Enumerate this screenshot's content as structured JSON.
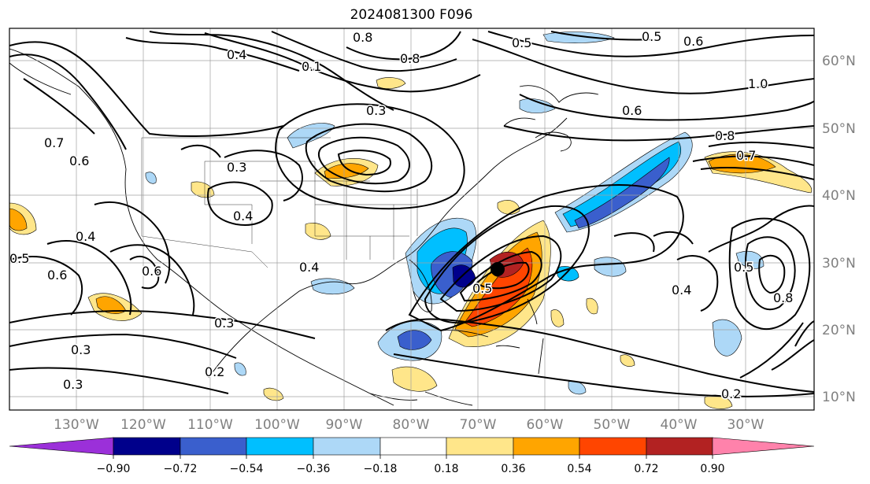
{
  "title": "2024081300 F096",
  "lon_labels": [
    "130°W",
    "120°W",
    "110°W",
    "100°W",
    "90°W",
    "80°W",
    "70°W",
    "60°W",
    "50°W",
    "40°W",
    "30°W"
  ],
  "lat_labels": [
    "60°N",
    "50°N",
    "40°N",
    "30°N",
    "20°N",
    "10°N"
  ],
  "colorbar": {
    "ticks": [
      "−0.90",
      "−0.72",
      "−0.54",
      "−0.36",
      "−0.18",
      "0.18",
      "0.36",
      "0.54",
      "0.72",
      "0.90"
    ],
    "colors": [
      "#9b30d9",
      "#00008b",
      "#3a5fcd",
      "#00bfff",
      "#add8f7",
      "#ffffff",
      "#ffe68a",
      "#ffa500",
      "#ff4500",
      "#b22222",
      "#ff82ab"
    ]
  },
  "contour_labels": [
    "0.8",
    "0.5",
    "0.5",
    "0.6",
    "0.4",
    "0.1",
    "0.8",
    "1.0",
    "0.3",
    "0.6",
    "0.8",
    "0.7",
    "0.7",
    "0.6",
    "0.4",
    "0.3",
    "0.4",
    "0.4",
    "0.6",
    "0.6",
    "0.5",
    "0.3",
    "0.2",
    "0.3",
    "0.3",
    "0.4",
    "0.5",
    "0.8",
    "0.2",
    "0.5"
  ],
  "colors": {
    "land_fill": "#ffffff",
    "grid": "#a0a0a0",
    "contour": "#000000",
    "label_text": "#808080"
  }
}
